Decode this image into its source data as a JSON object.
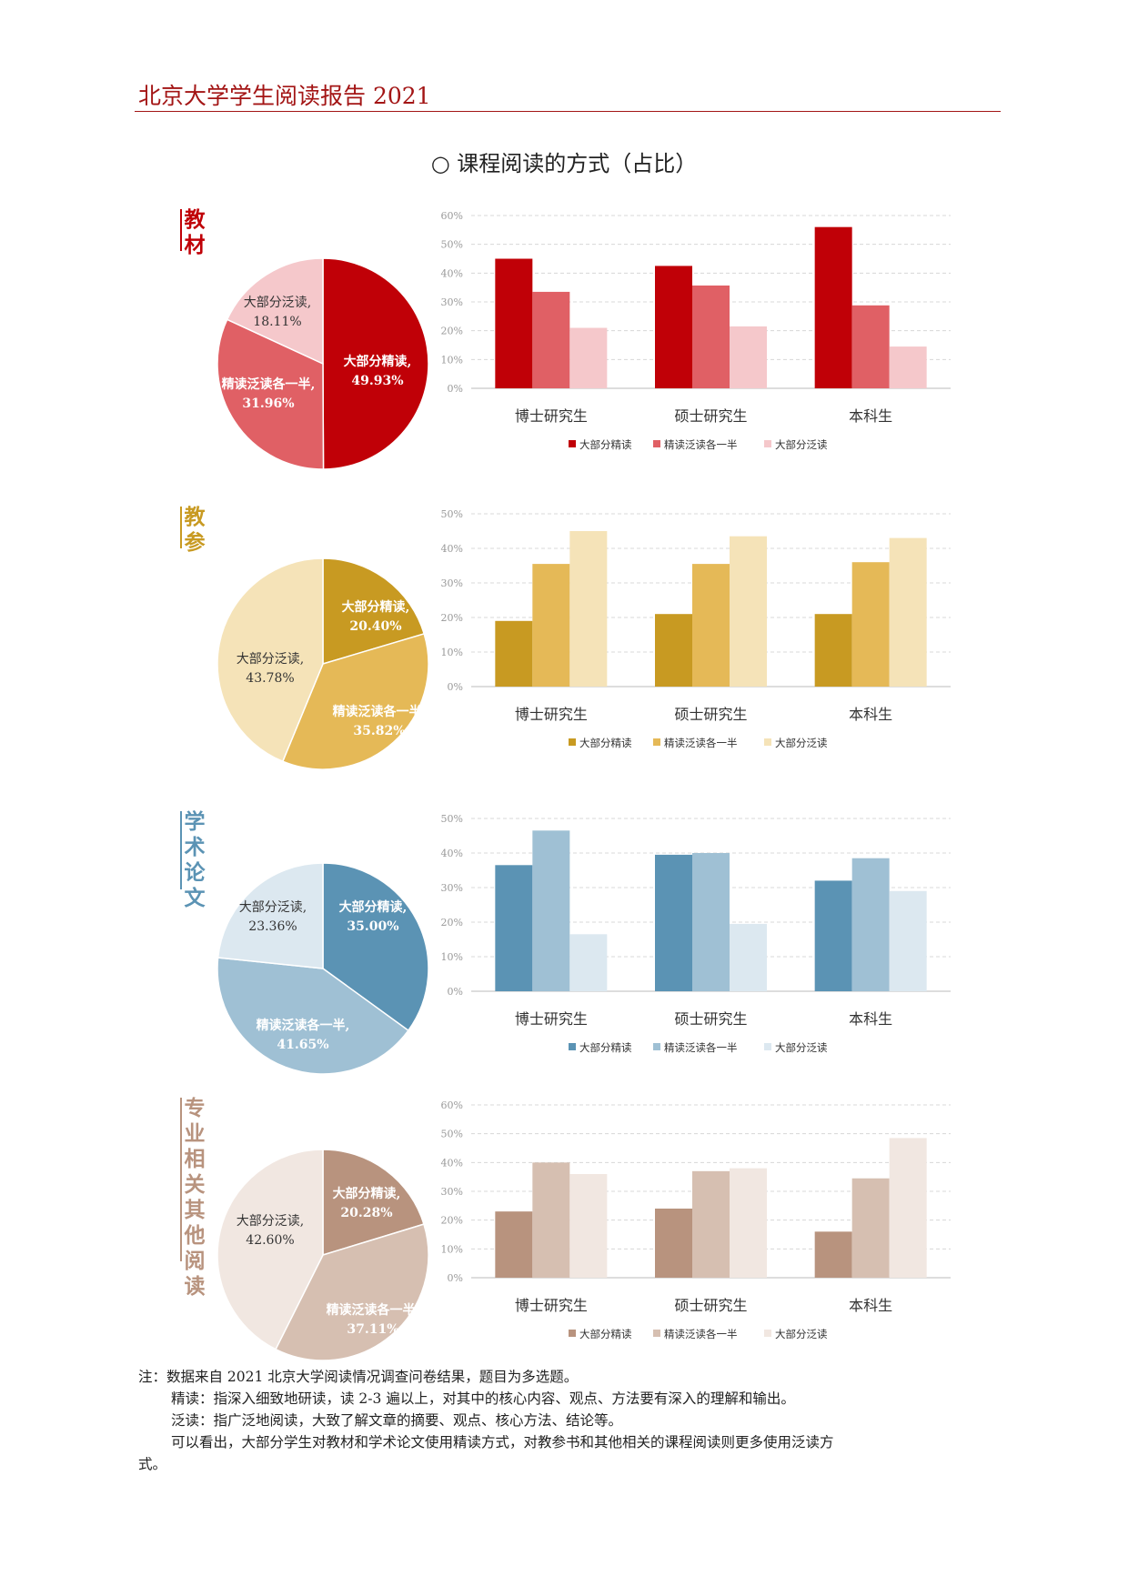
{
  "header": {
    "title": "北京大学学生阅读报告 2021"
  },
  "page_title": "○ 课程阅读的方式（占比）",
  "chart_data": [
    {
      "type": "pie+bar",
      "category_label": "教材",
      "colors": [
        "#c00007",
        "#e06065",
        "#f5c8cb"
      ],
      "pie": [
        {
          "name": "大部分精读",
          "value": 49.93,
          "label": "49.93%"
        },
        {
          "name": "精读泛读各一半",
          "value": 31.96,
          "label": "31.96%"
        },
        {
          "name": "大部分泛读",
          "value": 18.11,
          "label": "18.11%"
        }
      ],
      "categories": [
        "博士研究生",
        "硕士研究生",
        "本科生"
      ],
      "series": [
        {
          "name": "大部分精读",
          "values": [
            45,
            42.5,
            56
          ]
        },
        {
          "name": "精读泛读各一半",
          "values": [
            33.5,
            35.7,
            28.8
          ]
        },
        {
          "name": "大部分泛读",
          "values": [
            21,
            21.5,
            14.5
          ]
        }
      ],
      "ylim": [
        0,
        60
      ],
      "yticks": [
        "0%",
        "10%",
        "20%",
        "30%",
        "40%",
        "50%",
        "60%"
      ]
    },
    {
      "type": "pie+bar",
      "category_label": "教参",
      "colors": [
        "#c89a22",
        "#e5b957",
        "#f5e3b8"
      ],
      "pie": [
        {
          "name": "大部分精读",
          "value": 20.4,
          "label": "20.40%"
        },
        {
          "name": "精读泛读各一半",
          "value": 35.82,
          "label": "35.82%"
        },
        {
          "name": "大部分泛读",
          "value": 43.78,
          "label": "43.78%"
        }
      ],
      "categories": [
        "博士研究生",
        "硕士研究生",
        "本科生"
      ],
      "series": [
        {
          "name": "大部分精读",
          "values": [
            19,
            21,
            21
          ]
        },
        {
          "name": "精读泛读各一半",
          "values": [
            35.5,
            35.5,
            36
          ]
        },
        {
          "name": "大部分泛读",
          "values": [
            45,
            43.5,
            43
          ]
        }
      ],
      "ylim": [
        0,
        50
      ],
      "yticks": [
        "0%",
        "10%",
        "20%",
        "30%",
        "40%",
        "50%"
      ]
    },
    {
      "type": "pie+bar",
      "category_label": "学术论文",
      "colors": [
        "#5b93b4",
        "#9fc0d4",
        "#dce8f0"
      ],
      "pie": [
        {
          "name": "大部分精读",
          "value": 35.0,
          "label": "35.00%"
        },
        {
          "name": "精读泛读各一半",
          "value": 41.65,
          "label": "41.65%"
        },
        {
          "name": "大部分泛读",
          "value": 23.36,
          "label": "23.36%"
        }
      ],
      "categories": [
        "博士研究生",
        "硕士研究生",
        "本科生"
      ],
      "series": [
        {
          "name": "大部分精读",
          "values": [
            36.5,
            39.5,
            32
          ]
        },
        {
          "name": "精读泛读各一半",
          "values": [
            46.5,
            40,
            38.5
          ]
        },
        {
          "name": "大部分泛读",
          "values": [
            16.5,
            19.5,
            29
          ]
        }
      ],
      "ylim": [
        0,
        50
      ],
      "yticks": [
        "0%",
        "10%",
        "20%",
        "30%",
        "40%",
        "50%"
      ]
    },
    {
      "type": "pie+bar",
      "category_label": "专业相关其他阅读",
      "colors": [
        "#b8937e",
        "#d6bfb1",
        "#f1e7e1"
      ],
      "pie": [
        {
          "name": "大部分精读",
          "value": 20.28,
          "label": "20.28%"
        },
        {
          "name": "精读泛读各一半",
          "value": 37.11,
          "label": "37.11%"
        },
        {
          "name": "大部分泛读",
          "value": 42.6,
          "label": "42.60%"
        }
      ],
      "categories": [
        "博士研究生",
        "硕士研究生",
        "本科生"
      ],
      "series": [
        {
          "name": "大部分精读",
          "values": [
            23,
            24,
            16
          ]
        },
        {
          "name": "精读泛读各一半",
          "values": [
            40,
            37,
            34.5
          ]
        },
        {
          "name": "大部分泛读",
          "values": [
            36,
            38,
            48.5
          ]
        }
      ],
      "ylim": [
        0,
        60
      ],
      "yticks": [
        "0%",
        "10%",
        "20%",
        "30%",
        "40%",
        "50%",
        "60%"
      ]
    }
  ],
  "notes": {
    "line1": "注：数据来自 2021 北京大学阅读情况调查问卷结果，题目为多选题。",
    "line2": "精读：指深入细致地研读，读 2-3 遍以上，对其中的核心内容、观点、方法要有深入的理解和输出。",
    "line3": "泛读：指广泛地阅读，大致了解文章的摘要、观点、核心方法、结论等。",
    "line4a": "可以看出，大部分学生对教材和学术论文使用精读方式，对教参书和其他相关的课程阅读则更多使用泛读方",
    "line4b": "式。"
  }
}
